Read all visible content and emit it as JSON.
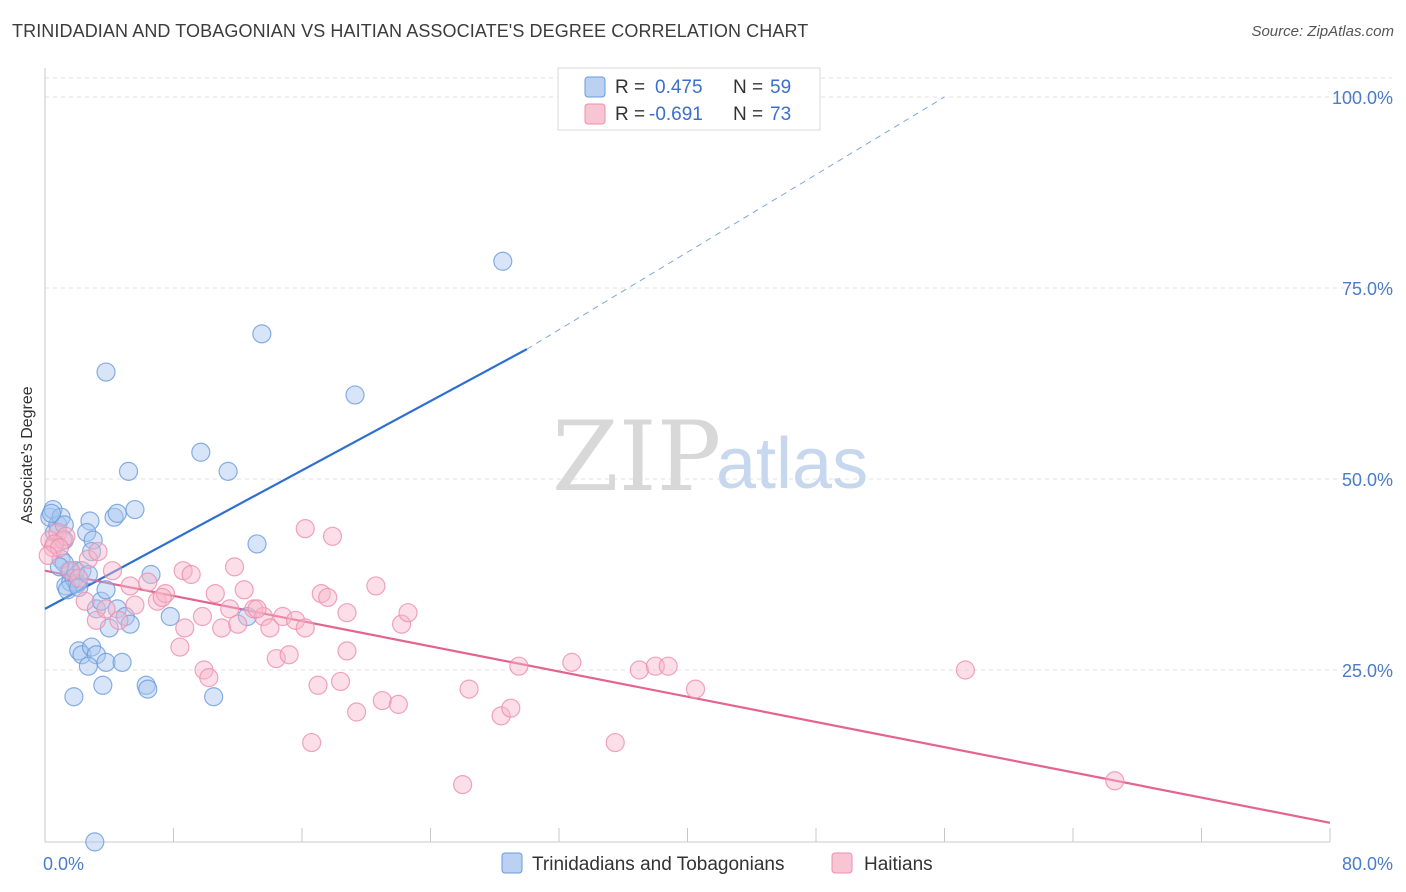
{
  "header": {
    "title": "TRINIDADIAN AND TOBAGONIAN VS HAITIAN ASSOCIATE'S DEGREE CORRELATION CHART",
    "source": "Source: ZipAtlas.com"
  },
  "watermark": {
    "zip": "ZIP",
    "atlas": "atlas"
  },
  "legend": {
    "rows": [
      {
        "r_label": "R =",
        "r_value": "0.475",
        "n_label": "N =",
        "n_value": "59",
        "color": "#a9c6ef"
      },
      {
        "r_label": "R =",
        "r_value": "-0.691",
        "n_label": "N =",
        "n_value": "73",
        "color": "#f6b6c9"
      }
    ]
  },
  "bottom_legend": {
    "items": [
      {
        "label": "Trinidadians and Tobagonians",
        "color": "#a9c6ef"
      },
      {
        "label": "Haitians",
        "color": "#f6b6c9"
      }
    ]
  },
  "chart_data": {
    "type": "scatter",
    "title": "TRINIDADIAN AND TOBAGONIAN VS HAITIAN ASSOCIATE'S DEGREE CORRELATION CHART",
    "xlabel": "",
    "ylabel": "Associate's Degree",
    "xlim": [
      0,
      80
    ],
    "ylim": [
      0,
      100
    ],
    "x_tick_labels": [
      "0.0%",
      "80.0%"
    ],
    "y_tick_labels": [
      "100.0%",
      "75.0%",
      "50.0%",
      "25.0%"
    ],
    "y_tick_values": [
      100,
      75,
      50,
      25
    ],
    "grid": true,
    "series": [
      {
        "name": "Trinidadians and Tobagonians",
        "color": "#6a9bdc",
        "fill": "#a9c6ef",
        "trend": {
          "x": [
            0,
            30
          ],
          "y": [
            33,
            67
          ],
          "extended_to": [
            56,
            100
          ]
        },
        "points": [
          [
            0.3,
            45
          ],
          [
            0.5,
            46
          ],
          [
            0.6,
            43
          ],
          [
            0.8,
            44
          ],
          [
            1.0,
            45
          ],
          [
            1.2,
            44
          ],
          [
            0.4,
            45.5
          ],
          [
            1.3,
            36
          ],
          [
            1.5,
            38
          ],
          [
            1.6,
            36.5
          ],
          [
            1.8,
            37
          ],
          [
            1.9,
            38
          ],
          [
            2.0,
            36.3
          ],
          [
            1.0,
            39.5
          ],
          [
            1.2,
            39
          ],
          [
            1.4,
            35.5
          ],
          [
            2.1,
            35.8
          ],
          [
            2.3,
            38
          ],
          [
            2.8,
            44.5
          ],
          [
            2.6,
            43
          ],
          [
            3.0,
            42
          ],
          [
            2.9,
            40.5
          ],
          [
            2.7,
            37.5
          ],
          [
            3.2,
            33
          ],
          [
            3.5,
            34
          ],
          [
            3.8,
            35.5
          ],
          [
            4.5,
            33
          ],
          [
            4.0,
            30.5
          ],
          [
            2.1,
            27.5
          ],
          [
            2.3,
            27
          ],
          [
            2.9,
            28
          ],
          [
            3.2,
            27
          ],
          [
            2.7,
            25.5
          ],
          [
            3.8,
            26
          ],
          [
            3.6,
            23
          ],
          [
            4.8,
            26
          ],
          [
            6.3,
            23
          ],
          [
            6.4,
            22.5
          ],
          [
            1.8,
            21.5
          ],
          [
            10.5,
            21.5
          ],
          [
            4.3,
            45
          ],
          [
            4.5,
            45.5
          ],
          [
            5.6,
            46
          ],
          [
            6.6,
            37.5
          ],
          [
            5.0,
            32
          ],
          [
            5.3,
            31
          ],
          [
            7.8,
            32
          ],
          [
            3.8,
            64
          ],
          [
            5.2,
            51
          ],
          [
            9.7,
            53.5
          ],
          [
            11.4,
            51
          ],
          [
            13.2,
            41.5
          ],
          [
            13.5,
            69
          ],
          [
            19.3,
            61
          ],
          [
            28.5,
            78.5
          ],
          [
            3.1,
            2.5
          ],
          [
            1.2,
            42
          ],
          [
            0.9,
            38.5
          ],
          [
            12.6,
            32
          ]
        ]
      },
      {
        "name": "Haitians",
        "color": "#ec8fac",
        "fill": "#f6b6c9",
        "trend": {
          "x": [
            0,
            80
          ],
          "y": [
            38,
            5
          ]
        },
        "points": [
          [
            0.3,
            42
          ],
          [
            0.5,
            41
          ],
          [
            0.8,
            43
          ],
          [
            1.1,
            42
          ],
          [
            1.3,
            42.5
          ],
          [
            0.6,
            41.5
          ],
          [
            0.9,
            41
          ],
          [
            1.6,
            38
          ],
          [
            2.1,
            37
          ],
          [
            2.7,
            39.5
          ],
          [
            3.3,
            40.5
          ],
          [
            4.2,
            38
          ],
          [
            5.3,
            36
          ],
          [
            2.5,
            34
          ],
          [
            3.2,
            31.5
          ],
          [
            3.8,
            33
          ],
          [
            4.6,
            31.5
          ],
          [
            5.6,
            33.5
          ],
          [
            6.4,
            36.5
          ],
          [
            7.0,
            34
          ],
          [
            7.5,
            35
          ],
          [
            7.3,
            34.5
          ],
          [
            8.6,
            38
          ],
          [
            9.1,
            37.5
          ],
          [
            10.6,
            35
          ],
          [
            11.5,
            33
          ],
          [
            11.8,
            38.5
          ],
          [
            12.4,
            35.5
          ],
          [
            13.0,
            33
          ],
          [
            13.6,
            32
          ],
          [
            14.0,
            30.5
          ],
          [
            14.8,
            32
          ],
          [
            15.6,
            31.5
          ],
          [
            16.2,
            30.5
          ],
          [
            17.2,
            35
          ],
          [
            17.6,
            34.5
          ],
          [
            18.8,
            32.5
          ],
          [
            20.6,
            36
          ],
          [
            22.2,
            31
          ],
          [
            22.6,
            32.5
          ],
          [
            8.7,
            30.5
          ],
          [
            9.8,
            32
          ],
          [
            11.0,
            30.5
          ],
          [
            12.0,
            31
          ],
          [
            13.2,
            33
          ],
          [
            8.4,
            28
          ],
          [
            9.9,
            25
          ],
          [
            10.2,
            24
          ],
          [
            14.4,
            26.5
          ],
          [
            15.2,
            27
          ],
          [
            17.0,
            23
          ],
          [
            18.8,
            27.5
          ],
          [
            18.4,
            23.5
          ],
          [
            19.4,
            19.5
          ],
          [
            21.0,
            21
          ],
          [
            22.0,
            20.5
          ],
          [
            26.4,
            22.5
          ],
          [
            28.4,
            19
          ],
          [
            29.0,
            20
          ],
          [
            29.5,
            25.5
          ],
          [
            32.8,
            26
          ],
          [
            37.0,
            25
          ],
          [
            38.0,
            25.5
          ],
          [
            38.8,
            25.5
          ],
          [
            40.5,
            22.5
          ],
          [
            57.3,
            25
          ],
          [
            16.6,
            15.5
          ],
          [
            26.0,
            10
          ],
          [
            35.5,
            15.5
          ],
          [
            66.6,
            10.5
          ],
          [
            16.2,
            43.5
          ],
          [
            17.9,
            42.5
          ],
          [
            0.2,
            40
          ]
        ]
      }
    ]
  }
}
